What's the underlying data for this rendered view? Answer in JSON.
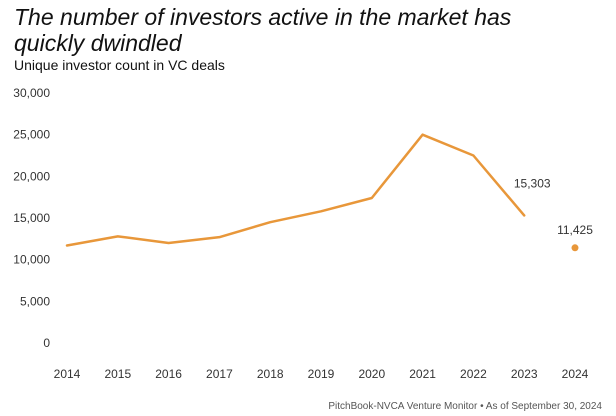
{
  "colors": {
    "line": "#E8973A"
  },
  "chart_data": {
    "type": "line",
    "title": "The number of investors active in the market has quickly dwindled",
    "subtitle": "Unique investor count in VC deals",
    "categories": [
      "2014",
      "2015",
      "2016",
      "2017",
      "2018",
      "2019",
      "2020",
      "2021",
      "2022",
      "2023",
      "2024"
    ],
    "series": [
      {
        "name": "Unique investor count",
        "values": [
          11700,
          12800,
          12000,
          12700,
          14500,
          15800,
          17400,
          25000,
          22500,
          15303,
          null
        ]
      },
      {
        "name": "2024 (as of Sep 30)",
        "values": [
          null,
          null,
          null,
          null,
          null,
          null,
          null,
          null,
          null,
          null,
          11425
        ]
      }
    ],
    "yticks": [
      {
        "value": 0,
        "label": "0"
      },
      {
        "value": 5000,
        "label": "5,000"
      },
      {
        "value": 10000,
        "label": "10,000"
      },
      {
        "value": 15000,
        "label": "15,000"
      },
      {
        "value": 20000,
        "label": "20,000"
      },
      {
        "value": 25000,
        "label": "25,000"
      },
      {
        "value": 30000,
        "label": "30,000"
      }
    ],
    "ylim": [
      0,
      30000
    ],
    "xlabel": "",
    "ylabel": "",
    "grid": false,
    "data_labels": [
      {
        "category": "2023",
        "value": 15303,
        "label": "15,303"
      },
      {
        "category": "2024",
        "value": 11425,
        "label": "11,425"
      }
    ],
    "source": "PitchBook-NVCA Venture Monitor  •  As of September 30, 2024"
  }
}
